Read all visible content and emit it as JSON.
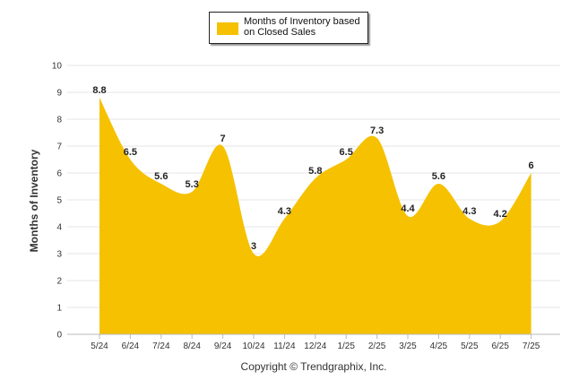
{
  "chart_data": {
    "type": "area",
    "categories": [
      "5/24",
      "6/24",
      "7/24",
      "8/24",
      "9/24",
      "10/24",
      "11/24",
      "12/24",
      "1/25",
      "2/25",
      "3/25",
      "4/25",
      "5/25",
      "6/25",
      "7/25"
    ],
    "series": [
      {
        "name": "Months of Inventory based on Closed Sales",
        "values": [
          8.8,
          6.5,
          5.6,
          5.3,
          7,
          3,
          4.3,
          5.8,
          6.5,
          7.3,
          4.4,
          5.6,
          4.3,
          4.2,
          6
        ],
        "value_labels": [
          "8.8",
          "6.5",
          "5.6",
          "5.3",
          "7",
          "3",
          "4.3",
          "5.8",
          "6.5",
          "7.3",
          "4.4",
          "5.6",
          "4.3",
          "4.2",
          "6"
        ]
      }
    ],
    "title": "",
    "xlabel": "",
    "ylabel": "Months of Inventory",
    "ylim": [
      0,
      10
    ],
    "yticks": [
      "0",
      "1",
      "2",
      "3",
      "4",
      "5",
      "6",
      "7",
      "8",
      "9",
      "10"
    ],
    "grid": true,
    "legend_position": "top-center",
    "colors": {
      "fill": "#F5C100",
      "gridline": "#E6E6E6",
      "axis": "#BBBBBB"
    },
    "credit": "Copyright © Trendgraphix, Inc."
  }
}
